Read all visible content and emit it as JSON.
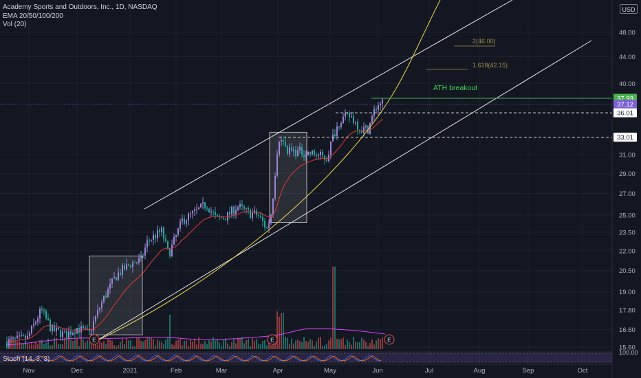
{
  "legend": {
    "title": "Academy Sports and Outdoors, Inc., 1D, NASDAQ",
    "ema": "EMA 20/50/100/200",
    "vol": "Vol (20)"
  },
  "currency_button": "USD",
  "stoch_label": "Stoch (14, 3, 3)",
  "colors": {
    "background": "#131722",
    "up": "#9b85d4",
    "down": "#26a69a",
    "ema": "#e53935",
    "channel": "#e8e8e8",
    "curve": "#f2d64b",
    "ath": "#4caf50",
    "fib": "#9c8f4a"
  },
  "chart_data": {
    "type": "candlestick",
    "y_ticks": [
      "48.00",
      "44.00",
      "40.00",
      "37.93",
      "37.12",
      "36.01",
      "33.01",
      "31.00",
      "29.00",
      "27.00",
      "25.00",
      "23.50",
      "22.00",
      "20.50",
      "19.00",
      "17.80",
      "16.60",
      "15.60"
    ],
    "y_tick_values": [
      48,
      44,
      40,
      37.93,
      37.12,
      36.01,
      33.01,
      31,
      29,
      27,
      25,
      23.5,
      22,
      20.5,
      19,
      17.8,
      16.6,
      15.6
    ],
    "x_ticks": [
      "Nov",
      "Dec",
      "2021",
      "Feb",
      "Mar",
      "Apr",
      "May",
      "Jun",
      "Jul",
      "Aug",
      "Sep",
      "Oct"
    ],
    "price_labels": [
      {
        "value": "37.93",
        "style": "ath"
      },
      {
        "value": "37.12",
        "style": "last"
      },
      {
        "value": "36.01",
        "style": "plain"
      },
      {
        "value": "33.01",
        "style": "plain"
      }
    ],
    "annotations": {
      "ath_label": "ATH breakout",
      "fib_levels": [
        "2(46.00)",
        "1.618(42.15)"
      ],
      "earnings_marker": "E",
      "stoch_level": "100.00"
    }
  }
}
